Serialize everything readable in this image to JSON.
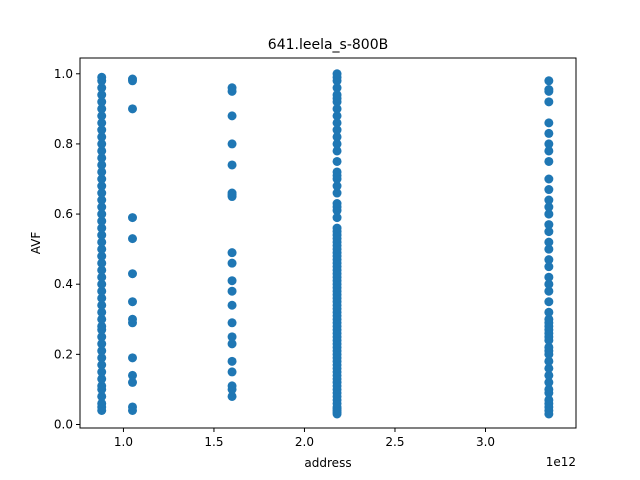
{
  "chart_data": {
    "type": "scatter",
    "title": "641.leela_s-800B",
    "xlabel": "address",
    "ylabel": "AVF",
    "x_offset_label": "1e12",
    "x_scale": 1000000000000.0,
    "xlim": [
      0.76,
      3.5
    ],
    "ylim": [
      -0.01,
      1.045
    ],
    "xticks": [
      1.0,
      1.5,
      2.0,
      2.5,
      3.0
    ],
    "xtick_labels": [
      "1.0",
      "1.5",
      "2.0",
      "2.5",
      "3.0"
    ],
    "yticks": [
      0.0,
      0.2,
      0.4,
      0.6,
      0.8,
      1.0
    ],
    "ytick_labels": [
      "0.0",
      "0.2",
      "0.4",
      "0.6",
      "0.8",
      "1.0"
    ],
    "grid": false,
    "marker_color": "#1f77b4",
    "series": [
      {
        "x": 0.88,
        "y": [
          0.04,
          0.05,
          0.06,
          0.08,
          0.1,
          0.11,
          0.13,
          0.15,
          0.17,
          0.19,
          0.21,
          0.23,
          0.25,
          0.27,
          0.28,
          0.3,
          0.32,
          0.34,
          0.36,
          0.38,
          0.4,
          0.42,
          0.44,
          0.46,
          0.48,
          0.5,
          0.52,
          0.54,
          0.56,
          0.58,
          0.6,
          0.62,
          0.64,
          0.66,
          0.68,
          0.7,
          0.72,
          0.74,
          0.76,
          0.78,
          0.8,
          0.82,
          0.84,
          0.86,
          0.88,
          0.9,
          0.92,
          0.94,
          0.96,
          0.98,
          0.99
        ]
      },
      {
        "x": 1.05,
        "y": [
          0.04,
          0.05,
          0.12,
          0.14,
          0.19,
          0.29,
          0.3,
          0.35,
          0.43,
          0.53,
          0.59,
          0.9,
          0.98,
          0.985
        ]
      },
      {
        "x": 1.6,
        "y": [
          0.08,
          0.1,
          0.11,
          0.15,
          0.18,
          0.23,
          0.25,
          0.29,
          0.34,
          0.38,
          0.41,
          0.46,
          0.49,
          0.65,
          0.655,
          0.66,
          0.74,
          0.8,
          0.88,
          0.95,
          0.96
        ]
      },
      {
        "x": 2.18,
        "y": [
          0.03,
          0.035,
          0.04,
          0.045,
          0.05,
          0.06,
          0.07,
          0.08,
          0.09,
          0.1,
          0.11,
          0.12,
          0.13,
          0.14,
          0.15,
          0.16,
          0.17,
          0.18,
          0.19,
          0.2,
          0.21,
          0.22,
          0.23,
          0.24,
          0.25,
          0.26,
          0.27,
          0.28,
          0.29,
          0.3,
          0.31,
          0.32,
          0.33,
          0.34,
          0.35,
          0.36,
          0.37,
          0.38,
          0.39,
          0.4,
          0.41,
          0.42,
          0.43,
          0.44,
          0.45,
          0.46,
          0.47,
          0.48,
          0.49,
          0.5,
          0.51,
          0.52,
          0.53,
          0.54,
          0.55,
          0.56,
          0.59,
          0.61,
          0.62,
          0.63,
          0.66,
          0.68,
          0.7,
          0.71,
          0.72,
          0.75,
          0.78,
          0.8,
          0.82,
          0.84,
          0.86,
          0.88,
          0.9,
          0.92,
          0.93,
          0.94,
          0.96,
          0.98,
          0.99,
          1.0
        ]
      },
      {
        "x": 3.35,
        "y": [
          0.03,
          0.04,
          0.05,
          0.06,
          0.07,
          0.09,
          0.1,
          0.12,
          0.14,
          0.16,
          0.18,
          0.2,
          0.21,
          0.22,
          0.24,
          0.25,
          0.26,
          0.27,
          0.28,
          0.29,
          0.3,
          0.32,
          0.35,
          0.38,
          0.4,
          0.42,
          0.45,
          0.47,
          0.5,
          0.52,
          0.55,
          0.57,
          0.6,
          0.62,
          0.64,
          0.67,
          0.7,
          0.75,
          0.78,
          0.8,
          0.83,
          0.86,
          0.92,
          0.95,
          0.955,
          0.98
        ]
      }
    ]
  }
}
